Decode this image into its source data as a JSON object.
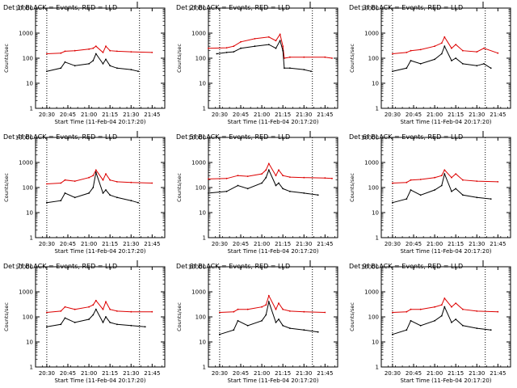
{
  "figure": {
    "title_template": "Det {n}f BLACK = Events, RED = LLD",
    "xlabel": "Start Time (11-Feb-04 20:17:20)",
    "ylabel": "Counts/sec"
  },
  "chart_data": [
    {
      "type": "line",
      "panel": "1",
      "title": "Det 1f BLACK = Events, RED = LLD",
      "xlabel": "Start Time (11-Feb-04 20:17:20)",
      "ylabel": "Counts/sec",
      "x_unit": "time",
      "xlim": [
        "20:22",
        "21:54"
      ],
      "ylim": [
        1,
        10000
      ],
      "y_scale": "log",
      "x_ticks": [
        "20:30",
        "20:45",
        "21:00",
        "21:15",
        "21:30",
        "21:45"
      ],
      "y_ticks": [
        "1",
        "10",
        "100",
        "1000",
        "10000"
      ],
      "reference_lines": [
        "20:30",
        "21:36"
      ],
      "series": [
        {
          "name": "RED = LLD",
          "color": "#dd0000",
          "x": [
            "20:30",
            "20:40",
            "20:43",
            "20:50",
            "21:00",
            "21:03",
            "21:05",
            "21:10",
            "21:12",
            "21:15",
            "21:20",
            "21:30",
            "21:45"
          ],
          "values": [
            150,
            160,
            190,
            200,
            230,
            250,
            300,
            170,
            300,
            200,
            190,
            180,
            170
          ]
        },
        {
          "name": "BLACK = Events",
          "color": "#000000",
          "x": [
            "20:30",
            "20:40",
            "20:43",
            "20:50",
            "21:00",
            "21:03",
            "21:05",
            "21:10",
            "21:12",
            "21:15",
            "21:20",
            "21:30",
            "21:35"
          ],
          "values": [
            30,
            40,
            70,
            50,
            60,
            80,
            150,
            60,
            90,
            50,
            40,
            35,
            30
          ]
        }
      ]
    },
    {
      "type": "line",
      "panel": "2",
      "title": "Det 2f BLACK = Events, RED = LLD",
      "xlabel": "Start Time (11-Feb-04 20:17:20)",
      "ylabel": "Counts/sec",
      "x_unit": "time",
      "xlim": [
        "20:22",
        "21:54"
      ],
      "ylim": [
        1,
        10000
      ],
      "y_scale": "log",
      "x_ticks": [
        "20:30",
        "20:45",
        "21:00",
        "21:15",
        "21:30",
        "21:45"
      ],
      "y_ticks": [
        "1",
        "10",
        "100",
        "1000",
        "10000"
      ],
      "reference_lines": [
        "20:30",
        "21:36"
      ],
      "series": [
        {
          "name": "RED = LLD",
          "color": "#dd0000",
          "x": [
            "20:22",
            "20:35",
            "20:40",
            "20:45",
            "20:55",
            "21:05",
            "21:10",
            "21:13",
            "21:15",
            "21:16",
            "21:20",
            "21:30",
            "21:45",
            "21:50"
          ],
          "values": [
            250,
            260,
            300,
            450,
            600,
            700,
            500,
            900,
            300,
            100,
            110,
            110,
            110,
            100
          ]
        },
        {
          "name": "BLACK = Events",
          "color": "#000000",
          "x": [
            "20:28",
            "20:35",
            "20:40",
            "20:45",
            "20:55",
            "21:05",
            "21:10",
            "21:13",
            "21:15",
            "21:16",
            "21:20",
            "21:30",
            "21:35"
          ],
          "values": [
            150,
            170,
            180,
            250,
            300,
            350,
            250,
            500,
            200,
            40,
            40,
            35,
            30
          ]
        }
      ]
    },
    {
      "type": "line",
      "panel": "3",
      "title": "Det 3f BLACK = Events, RED = LLD",
      "xlabel": "Start Time (11-Feb-04 20:17:20)",
      "ylabel": "Counts/sec",
      "x_unit": "time",
      "xlim": [
        "20:22",
        "21:54"
      ],
      "ylim": [
        1,
        10000
      ],
      "y_scale": "log",
      "x_ticks": [
        "20:30",
        "20:45",
        "21:00",
        "21:15",
        "21:30",
        "21:45"
      ],
      "y_ticks": [
        "1",
        "10",
        "100",
        "1000",
        "10000"
      ],
      "reference_lines": [
        "20:30",
        "21:36"
      ],
      "series": [
        {
          "name": "RED = LLD",
          "color": "#dd0000",
          "x": [
            "20:30",
            "20:40",
            "20:43",
            "20:50",
            "21:00",
            "21:05",
            "21:07",
            "21:12",
            "21:15",
            "21:20",
            "21:30",
            "21:35",
            "21:45"
          ],
          "values": [
            150,
            170,
            200,
            220,
            300,
            400,
            700,
            250,
            350,
            200,
            180,
            250,
            160
          ]
        },
        {
          "name": "BLACK = Events",
          "color": "#000000",
          "x": [
            "20:30",
            "20:40",
            "20:43",
            "20:50",
            "21:00",
            "21:05",
            "21:07",
            "21:12",
            "21:15",
            "21:20",
            "21:30",
            "21:35",
            "21:40"
          ],
          "values": [
            30,
            40,
            80,
            60,
            90,
            150,
            300,
            80,
            100,
            60,
            50,
            60,
            40
          ]
        }
      ]
    },
    {
      "type": "line",
      "panel": "4",
      "title": "Det 4f BLACK = Events, RED = LLD",
      "xlabel": "Start Time (11-Feb-04 20:17:20)",
      "ylabel": "Counts/sec",
      "x_unit": "time",
      "xlim": [
        "20:22",
        "21:54"
      ],
      "ylim": [
        1,
        10000
      ],
      "y_scale": "log",
      "x_ticks": [
        "20:30",
        "20:45",
        "21:00",
        "21:15",
        "21:30",
        "21:45"
      ],
      "y_ticks": [
        "1",
        "10",
        "100",
        "1000",
        "10000"
      ],
      "reference_lines": [
        "20:30",
        "21:36"
      ],
      "series": [
        {
          "name": "RED = LLD",
          "color": "#dd0000",
          "x": [
            "20:30",
            "20:40",
            "20:43",
            "20:50",
            "21:00",
            "21:03",
            "21:05",
            "21:10",
            "21:12",
            "21:15",
            "21:20",
            "21:30",
            "21:45"
          ],
          "values": [
            140,
            150,
            200,
            180,
            250,
            300,
            500,
            200,
            350,
            200,
            170,
            160,
            150
          ]
        },
        {
          "name": "BLACK = Events",
          "color": "#000000",
          "x": [
            "20:30",
            "20:40",
            "20:43",
            "20:50",
            "21:00",
            "21:03",
            "21:05",
            "21:10",
            "21:12",
            "21:15",
            "21:20",
            "21:30",
            "21:35"
          ],
          "values": [
            25,
            30,
            60,
            40,
            60,
            100,
            400,
            60,
            80,
            50,
            40,
            30,
            25
          ]
        }
      ]
    },
    {
      "type": "line",
      "panel": "5",
      "title": "Det 5f BLACK = Events, RED = LLD",
      "xlabel": "Start Time (11-Feb-04 20:17:20)",
      "ylabel": "Counts/sec",
      "x_unit": "time",
      "xlim": [
        "20:22",
        "21:54"
      ],
      "ylim": [
        1,
        10000
      ],
      "y_scale": "log",
      "x_ticks": [
        "20:30",
        "20:45",
        "21:00",
        "21:15",
        "21:30",
        "21:45"
      ],
      "y_ticks": [
        "1",
        "10",
        "100",
        "1000",
        "10000"
      ],
      "reference_lines": [
        "20:30",
        "21:36"
      ],
      "series": [
        {
          "name": "RED = LLD",
          "color": "#dd0000",
          "x": [
            "20:22",
            "20:35",
            "20:43",
            "20:50",
            "21:00",
            "21:03",
            "21:05",
            "21:10",
            "21:12",
            "21:15",
            "21:20",
            "21:30",
            "21:45",
            "21:50"
          ],
          "values": [
            220,
            230,
            300,
            280,
            350,
            500,
            900,
            300,
            500,
            300,
            260,
            250,
            240,
            230
          ]
        },
        {
          "name": "BLACK = Events",
          "color": "#000000",
          "x": [
            "20:22",
            "20:35",
            "20:43",
            "20:50",
            "21:00",
            "21:03",
            "21:05",
            "21:10",
            "21:12",
            "21:15",
            "21:20",
            "21:30",
            "21:40"
          ],
          "values": [
            60,
            70,
            120,
            90,
            150,
            250,
            500,
            120,
            150,
            90,
            70,
            60,
            50
          ]
        }
      ]
    },
    {
      "type": "line",
      "panel": "6",
      "title": "Det 6f BLACK = Events, RED = LLD",
      "xlabel": "Start Time (11-Feb-04 20:17:20)",
      "ylabel": "Counts/sec",
      "x_unit": "time",
      "xlim": [
        "20:22",
        "21:54"
      ],
      "ylim": [
        1,
        10000
      ],
      "y_scale": "log",
      "x_ticks": [
        "20:30",
        "20:45",
        "21:00",
        "21:15",
        "21:30",
        "21:45"
      ],
      "y_ticks": [
        "1",
        "10",
        "100",
        "1000",
        "10000"
      ],
      "reference_lines": [
        "20:30",
        "21:36"
      ],
      "series": [
        {
          "name": "RED = LLD",
          "color": "#dd0000",
          "x": [
            "20:30",
            "20:40",
            "20:43",
            "20:50",
            "21:00",
            "21:05",
            "21:07",
            "21:12",
            "21:15",
            "21:20",
            "21:30",
            "21:45"
          ],
          "values": [
            150,
            160,
            200,
            210,
            250,
            300,
            500,
            250,
            350,
            200,
            180,
            170
          ]
        },
        {
          "name": "BLACK = Events",
          "color": "#000000",
          "x": [
            "20:30",
            "20:40",
            "20:43",
            "20:50",
            "21:00",
            "21:05",
            "21:07",
            "21:12",
            "21:15",
            "21:20",
            "21:30",
            "21:40"
          ],
          "values": [
            25,
            35,
            80,
            50,
            80,
            120,
            350,
            70,
            90,
            50,
            40,
            35
          ]
        }
      ]
    },
    {
      "type": "line",
      "panel": "7",
      "title": "Det 7f BLACK = Events, RED = LLD",
      "xlabel": "Start Time (11-Feb-04 20:17:20)",
      "ylabel": "Counts/sec",
      "x_unit": "time",
      "xlim": [
        "20:22",
        "21:54"
      ],
      "ylim": [
        1,
        10000
      ],
      "y_scale": "log",
      "x_ticks": [
        "20:30",
        "20:45",
        "21:00",
        "21:15",
        "21:30",
        "21:45"
      ],
      "y_ticks": [
        "1",
        "10",
        "100",
        "1000",
        "10000"
      ],
      "reference_lines": [
        "20:30",
        "21:36"
      ],
      "series": [
        {
          "name": "RED = LLD",
          "color": "#dd0000",
          "x": [
            "20:30",
            "20:40",
            "20:43",
            "20:50",
            "21:00",
            "21:03",
            "21:05",
            "21:10",
            "21:12",
            "21:15",
            "21:20",
            "21:30",
            "21:45"
          ],
          "values": [
            150,
            170,
            250,
            200,
            250,
            300,
            450,
            200,
            400,
            200,
            170,
            160,
            160
          ]
        },
        {
          "name": "BLACK = Events",
          "color": "#000000",
          "x": [
            "20:30",
            "20:40",
            "20:43",
            "20:50",
            "21:00",
            "21:03",
            "21:05",
            "21:10",
            "21:12",
            "21:15",
            "21:20",
            "21:30",
            "21:40"
          ],
          "values": [
            40,
            50,
            90,
            60,
            80,
            120,
            200,
            60,
            100,
            60,
            50,
            45,
            40
          ]
        }
      ]
    },
    {
      "type": "line",
      "panel": "8",
      "title": "Det 8f BLACK = Events, RED = LLD",
      "xlabel": "Start Time (11-Feb-04 20:17:20)",
      "ylabel": "Counts/sec",
      "x_unit": "time",
      "xlim": [
        "20:22",
        "21:54"
      ],
      "ylim": [
        1,
        10000
      ],
      "y_scale": "log",
      "x_ticks": [
        "20:30",
        "20:45",
        "21:00",
        "21:15",
        "21:30",
        "21:45"
      ],
      "y_ticks": [
        "1",
        "10",
        "100",
        "1000",
        "10000"
      ],
      "reference_lines": [
        "20:30",
        "21:36"
      ],
      "series": [
        {
          "name": "RED = LLD",
          "color": "#dd0000",
          "x": [
            "20:30",
            "20:40",
            "20:43",
            "20:50",
            "21:00",
            "21:03",
            "21:05",
            "21:10",
            "21:12",
            "21:15",
            "21:20",
            "21:30",
            "21:45"
          ],
          "values": [
            150,
            160,
            200,
            200,
            250,
            300,
            700,
            200,
            350,
            200,
            170,
            160,
            150
          ]
        },
        {
          "name": "BLACK = Events",
          "color": "#000000",
          "x": [
            "20:30",
            "20:40",
            "20:43",
            "20:50",
            "21:00",
            "21:03",
            "21:05",
            "21:10",
            "21:12",
            "21:15",
            "21:20",
            "21:30",
            "21:40"
          ],
          "values": [
            20,
            30,
            70,
            45,
            70,
            120,
            400,
            60,
            80,
            45,
            35,
            30,
            25
          ]
        }
      ]
    },
    {
      "type": "line",
      "panel": "9",
      "title": "Det 9f BLACK = Events, RED = LLD",
      "xlabel": "Start Time (11-Feb-04 20:17:20)",
      "ylabel": "Counts/sec",
      "x_unit": "time",
      "xlim": [
        "20:22",
        "21:54"
      ],
      "ylim": [
        1,
        10000
      ],
      "y_scale": "log",
      "x_ticks": [
        "20:30",
        "20:45",
        "21:00",
        "21:15",
        "21:30",
        "21:45"
      ],
      "y_ticks": [
        "1",
        "10",
        "100",
        "1000",
        "10000"
      ],
      "reference_lines": [
        "20:30",
        "21:36"
      ],
      "series": [
        {
          "name": "RED = LLD",
          "color": "#dd0000",
          "x": [
            "20:30",
            "20:40",
            "20:43",
            "20:50",
            "21:00",
            "21:05",
            "21:07",
            "21:12",
            "21:15",
            "21:20",
            "21:30",
            "21:45"
          ],
          "values": [
            150,
            160,
            200,
            200,
            250,
            300,
            550,
            250,
            350,
            200,
            170,
            160
          ]
        },
        {
          "name": "BLACK = Events",
          "color": "#000000",
          "x": [
            "20:30",
            "20:40",
            "20:43",
            "20:50",
            "21:00",
            "21:05",
            "21:07",
            "21:12",
            "21:15",
            "21:20",
            "21:30",
            "21:40"
          ],
          "values": [
            20,
            30,
            70,
            45,
            70,
            110,
            250,
            60,
            80,
            45,
            35,
            30
          ]
        }
      ]
    }
  ]
}
